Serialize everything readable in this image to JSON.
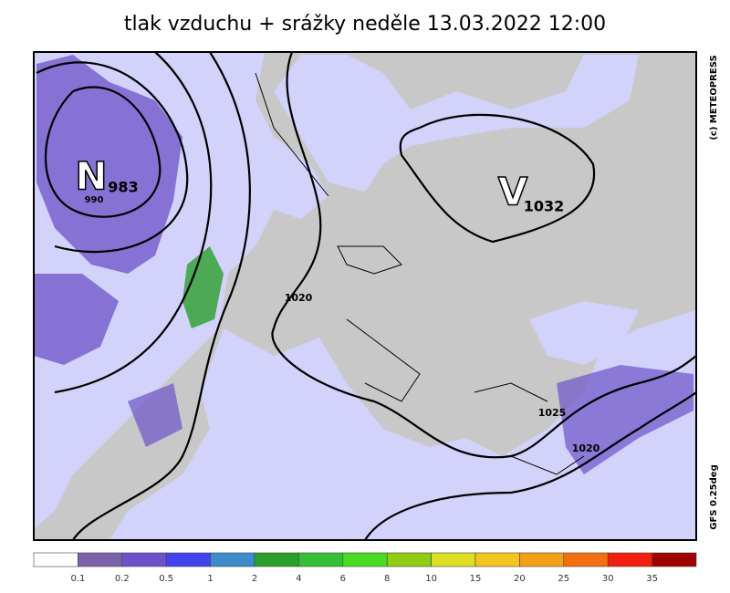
{
  "header": {
    "title": "tlak vzduchu + srážky  neděle 13.03.2022 12:00"
  },
  "credits": {
    "top": "(c) METEOPRESS",
    "bottom": "GFS 0.25deg"
  },
  "pressure_centers": [
    {
      "letter": "N",
      "value": "983"
    },
    {
      "letter": "V",
      "value": "1032"
    }
  ],
  "isobar_labels": [
    "1020",
    "1025",
    "1020",
    "990"
  ],
  "legend": {
    "colors": [
      "#ffffff",
      "#7d62aa",
      "#6c52c8",
      "#4242ee",
      "#3c8ccc",
      "#2aa02a",
      "#34c034",
      "#48dc22",
      "#90cc12",
      "#dede22",
      "#f2c61e",
      "#f2a014",
      "#f27012",
      "#f21e10",
      "#a00000"
    ],
    "labels": [
      "0.1",
      "0.2",
      "0.5",
      "1",
      "2",
      "4",
      "6",
      "8",
      "10",
      "15",
      "20",
      "25",
      "30",
      "35"
    ]
  }
}
